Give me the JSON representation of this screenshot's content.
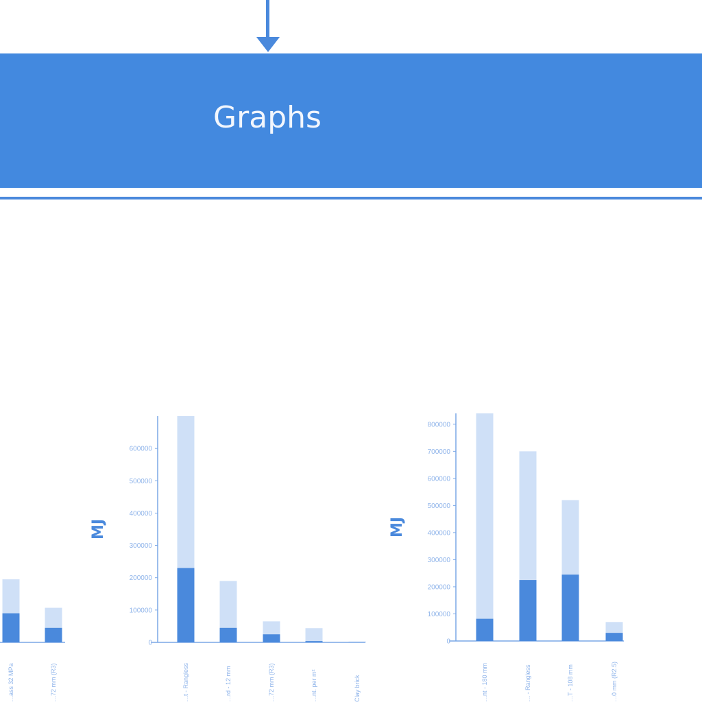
{
  "header": {
    "title": "Graphs"
  },
  "chart_data": [
    {
      "type": "bar",
      "stacked": true,
      "ylabel": "",
      "categories": [
        "…ass 32 MPa",
        "…72 mm (R3)"
      ],
      "series": [
        {
          "name": "",
          "values": [
            90000,
            45000
          ]
        },
        {
          "name": "",
          "values": [
            105000,
            62000
          ]
        }
      ]
    },
    {
      "type": "bar",
      "stacked": true,
      "ylabel": "MJ",
      "ylim": [
        0,
        700000
      ],
      "yticks": [
        "0",
        "100000",
        "200000",
        "300000",
        "400000",
        "500000",
        "600000"
      ],
      "categories": [
        "…t - Rangless",
        "…rd - 12 mm",
        "…72 mm (R3)",
        "…nt. per m²",
        "Clay brick"
      ],
      "series": [
        {
          "name": "",
          "values": [
            230000,
            45000,
            25000,
            4000,
            1000
          ]
        },
        {
          "name": "",
          "values": [
            470000,
            145000,
            40000,
            40000,
            1500
          ]
        }
      ]
    },
    {
      "type": "bar",
      "stacked": true,
      "ylabel": "MJ",
      "ylim": [
        0,
        840000
      ],
      "yticks": [
        "0",
        "100000",
        "200000",
        "300000",
        "400000",
        "500000",
        "600000",
        "700000",
        "800000"
      ],
      "categories": [
        "…nt - 180 mm",
        "… - Rangless",
        "…T - 108 mm",
        "…0 mm (R2.5)"
      ],
      "series": [
        {
          "name": "",
          "values": [
            82000,
            225000,
            245000,
            30000
          ]
        },
        {
          "name": "",
          "values": [
            758000,
            475000,
            275000,
            40000
          ]
        }
      ]
    }
  ]
}
